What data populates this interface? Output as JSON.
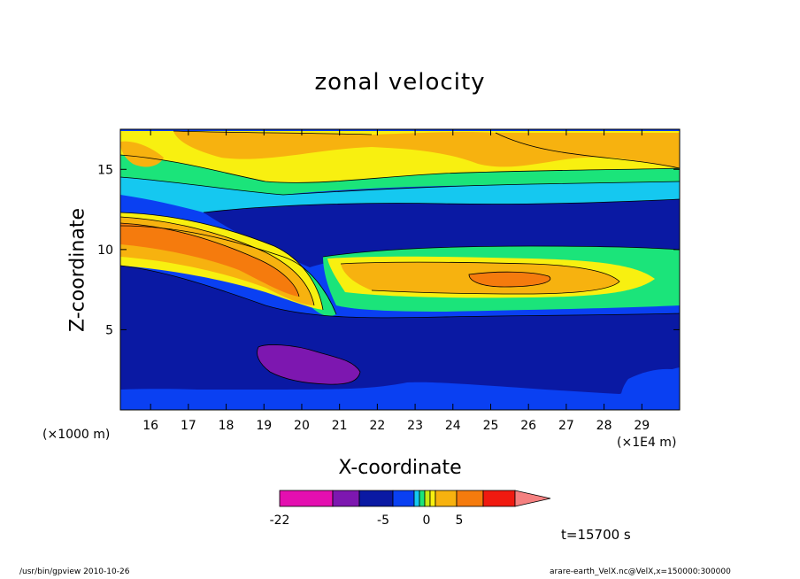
{
  "chart_data": {
    "type": "heatmap",
    "title": "zonal velocity",
    "xlabel": "X-coordinate",
    "ylabel": "Z-coordinate",
    "x_unit_left": "(×1000 m)",
    "x_unit_right": "(×1E4 m)",
    "xlim": [
      15.2,
      30.0
    ],
    "ylim": [
      0,
      17.5
    ],
    "x_ticks": [
      "16",
      "17",
      "18",
      "19",
      "20",
      "21",
      "22",
      "23",
      "24",
      "25",
      "26",
      "27",
      "28",
      "29"
    ],
    "y_ticks": [
      "5",
      "10",
      "15"
    ],
    "timestamp": "t=15700 s",
    "colorbar": {
      "colors": [
        "#e40fb0",
        "#7d17b0",
        "#0a19a3",
        "#0a40f2",
        "#15c8f0",
        "#1be47a",
        "#c7ea12",
        "#f8f010",
        "#f7b20f",
        "#f57b0d",
        "#f01a10",
        "#f58080"
      ],
      "labels": [
        "-22",
        "-5",
        "0",
        "5"
      ]
    },
    "regions": [
      {
        "name": "lower-dark-blue",
        "level": "-10",
        "color": "#0a19a3"
      },
      {
        "name": "purple-core",
        "level": "-15",
        "color": "#7d17b0"
      },
      {
        "name": "upper-jet",
        "level": "5",
        "color": "#f7b20f"
      },
      {
        "name": "mid-jet",
        "level": "5",
        "color": "#f7b20f"
      },
      {
        "name": "jet-core",
        "level": "8",
        "color": "#f57b0d"
      }
    ]
  },
  "footer": {
    "left": "/usr/bin/gpview   2010-10-26",
    "right": "arare-earth_VelX.nc@VelX,x=150000:300000"
  }
}
